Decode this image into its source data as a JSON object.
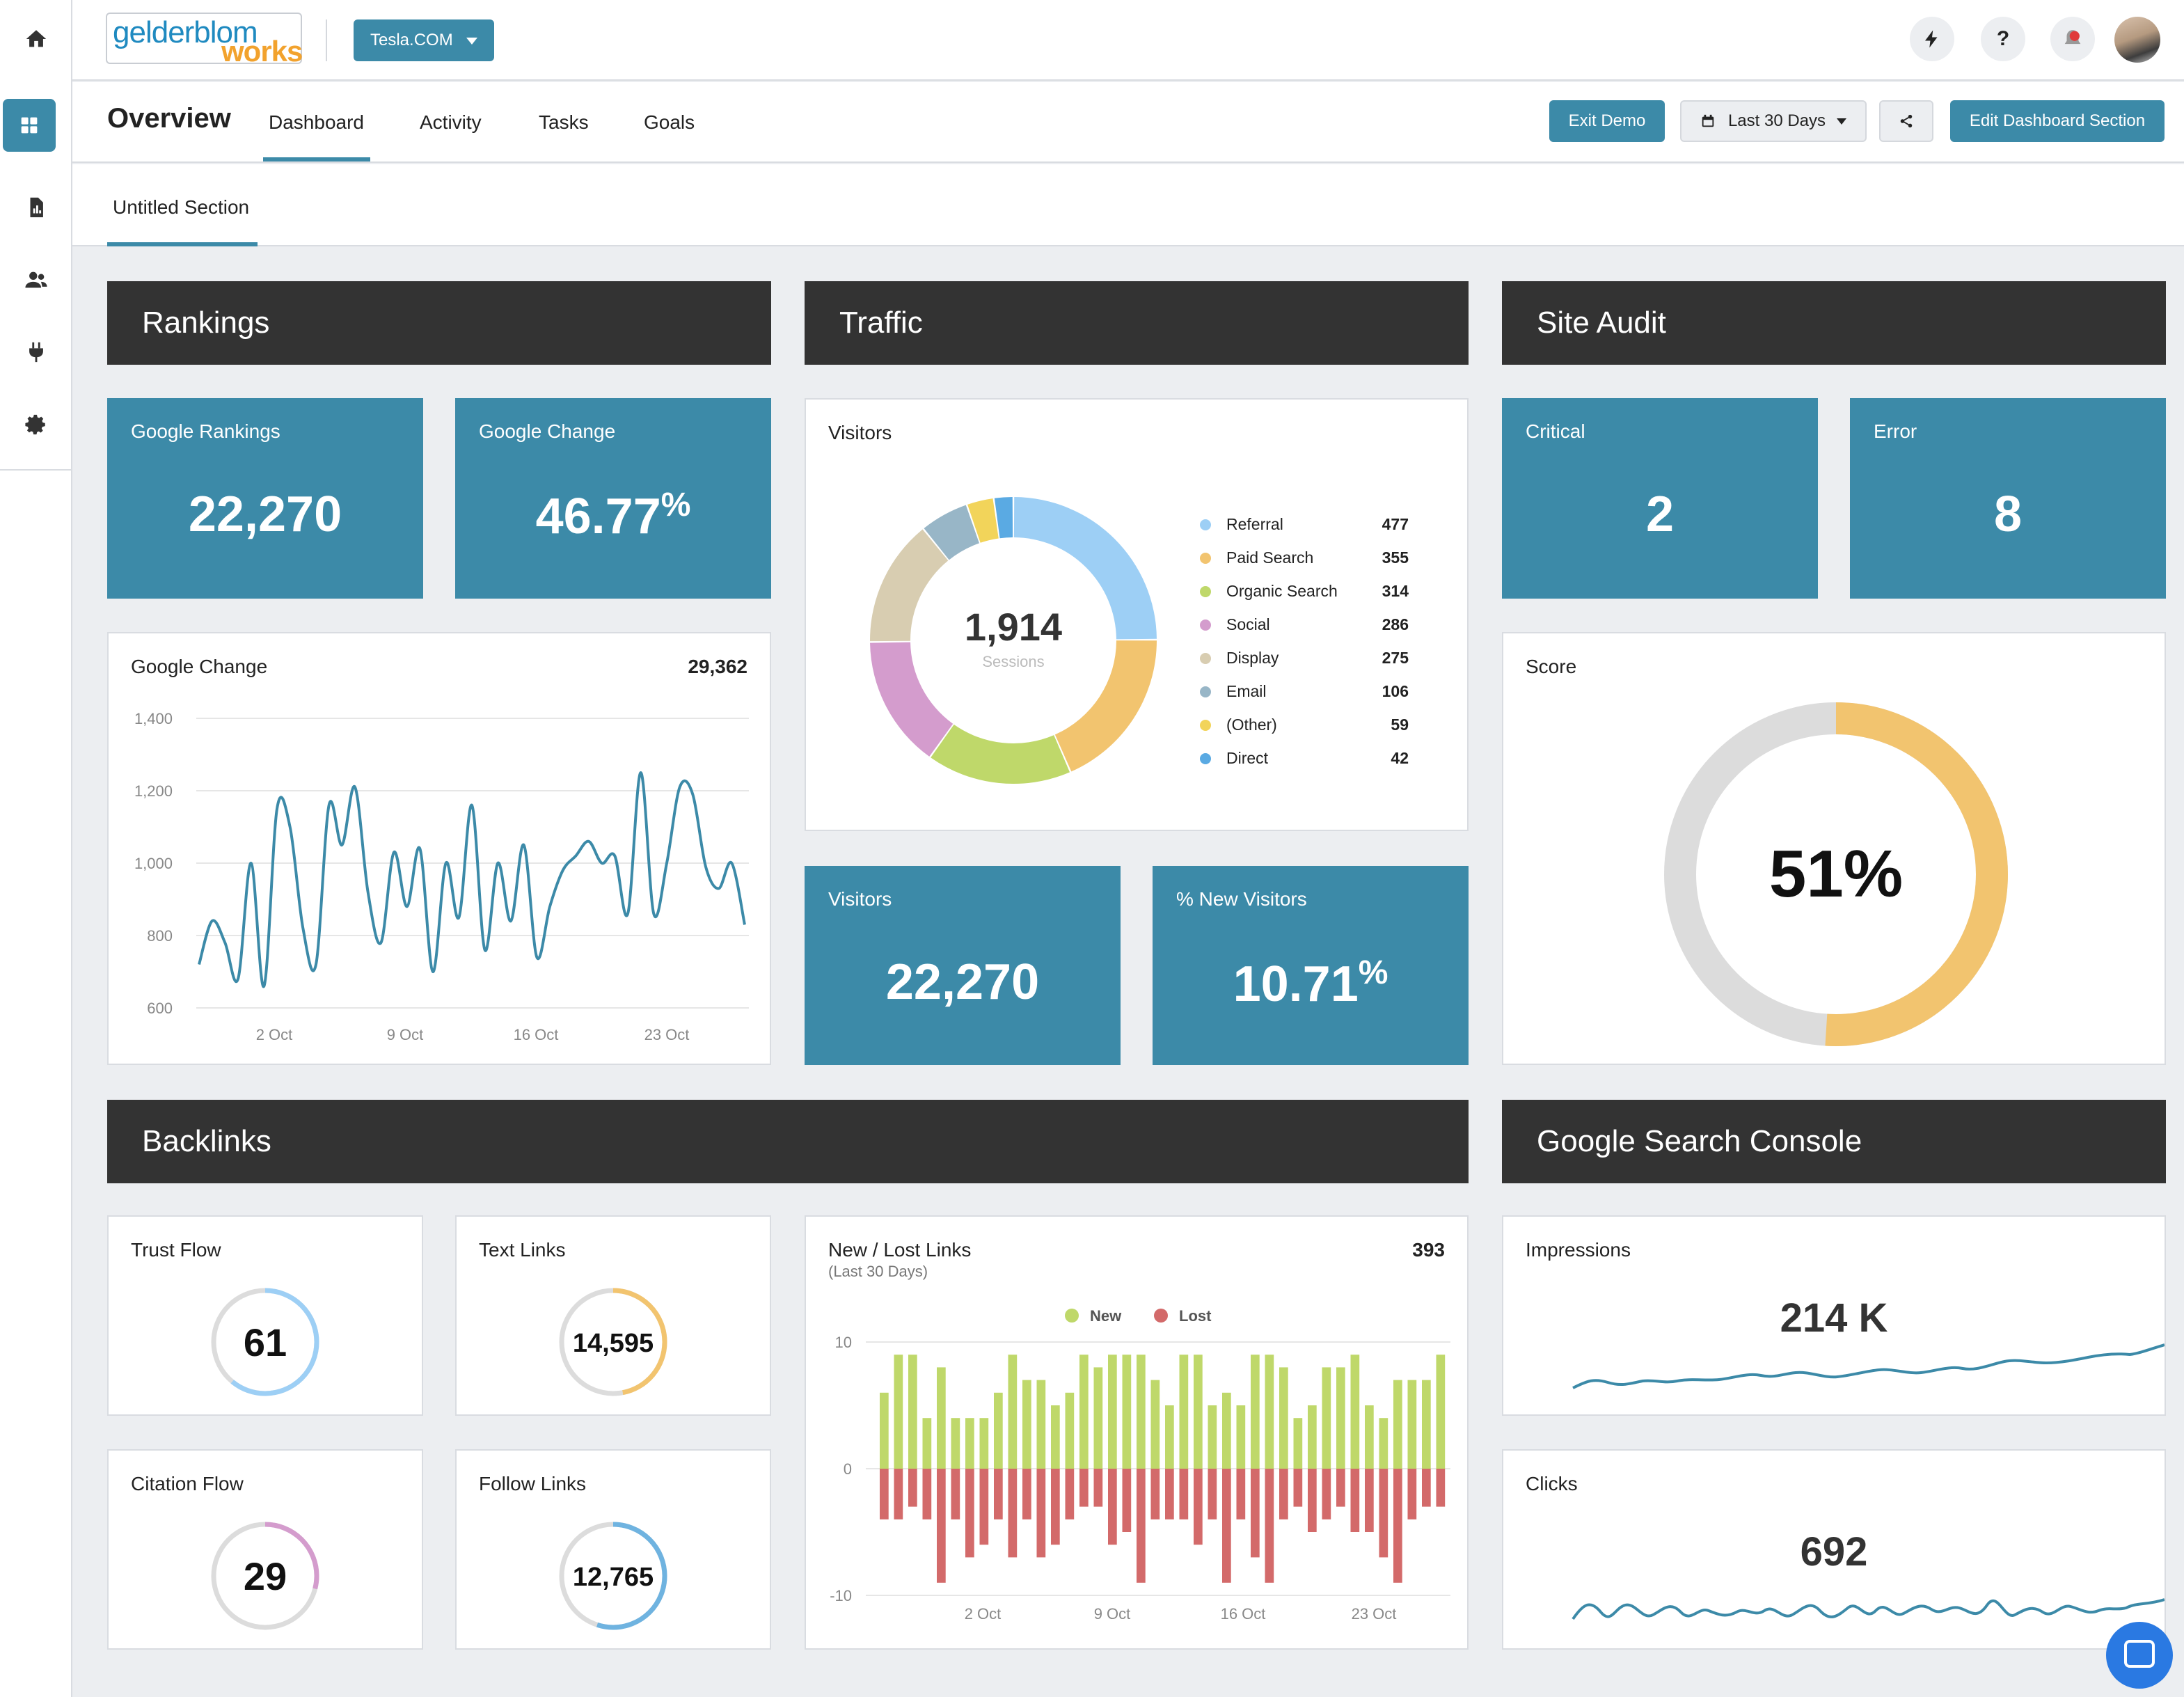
{
  "app": {
    "logo_text_1": "gelderblom",
    "logo_text_2": "works",
    "account": "Tesla.COM",
    "icons": [
      "home-icon",
      "dashboard-icon",
      "report-icon",
      "users-icon",
      "plug-icon",
      "gear-icon",
      "bolt-icon",
      "help-icon",
      "bell-icon",
      "avatar"
    ]
  },
  "subheader": {
    "title": "Overview",
    "tabs": [
      "Dashboard",
      "Activity",
      "Tasks",
      "Goals"
    ],
    "active_tab": "Dashboard",
    "exit_demo": "Exit Demo",
    "date_range": "Last 30 Days",
    "edit_section": "Edit Dashboard Section"
  },
  "section": {
    "tab": "Untitled Section"
  },
  "colors": {
    "primary": "#3c8aa8",
    "header_bg": "#333333",
    "page_bg": "#eceef1"
  },
  "rankings": {
    "header": "Rankings",
    "google_rankings": {
      "title": "Google Rankings",
      "value": "22,270"
    },
    "google_change_tile": {
      "title": "Google Change",
      "value": "46.77",
      "unit": "%"
    },
    "google_change_chart": {
      "title": "Google Change",
      "total": "29,362",
      "y_ticks": [
        "1,400",
        "1,200",
        "1,000",
        "800",
        "600"
      ],
      "x_ticks": [
        "2 Oct",
        "9 Oct",
        "16 Oct",
        "23 Oct"
      ]
    }
  },
  "traffic": {
    "header": "Traffic",
    "visitors_chart": {
      "title": "Visitors",
      "center_value": "1,914",
      "center_label": "Sessions",
      "segments": [
        {
          "name": "Referral",
          "value": "477",
          "color": "#9dcff5"
        },
        {
          "name": "Paid Search",
          "value": "355",
          "color": "#f2c46f"
        },
        {
          "name": "Organic Search",
          "value": "314",
          "color": "#bfd86a"
        },
        {
          "name": "Social",
          "value": "286",
          "color": "#d49ccd"
        },
        {
          "name": "Display",
          "value": "275",
          "color": "#d8cdb1"
        },
        {
          "name": "Email",
          "value": "106",
          "color": "#98b6c7"
        },
        {
          "name": "(Other)",
          "value": "59",
          "color": "#f2d45a"
        },
        {
          "name": "Direct",
          "value": "42",
          "color": "#5aaae3"
        }
      ]
    },
    "visitors_tile": {
      "title": "Visitors",
      "value": "22,270"
    },
    "new_visitors_tile": {
      "title": "% New Visitors",
      "value": "10.71",
      "unit": "%"
    }
  },
  "site_audit": {
    "header": "Site Audit",
    "critical": {
      "title": "Critical",
      "value": "2"
    },
    "error": {
      "title": "Error",
      "value": "8"
    },
    "score": {
      "title": "Score",
      "value": "51%",
      "fraction": 0.51,
      "fill_color": "#f2c46f",
      "track_color": "#dcdcdc"
    }
  },
  "backlinks": {
    "header": "Backlinks",
    "trust_flow": {
      "title": "Trust Flow",
      "value": "61",
      "color": "#9dcff5"
    },
    "text_links": {
      "title": "Text Links",
      "value": "14,595",
      "color": "#f2c46f"
    },
    "citation_flow": {
      "title": "Citation Flow",
      "value": "29",
      "color": "#d49ccd"
    },
    "follow_links": {
      "title": "Follow Links",
      "value": "12,765",
      "color": "#6fb3e0"
    },
    "new_lost": {
      "title": "New / Lost Links",
      "subtitle": "(Last 30 Days)",
      "total": "393",
      "legend_new": "New",
      "legend_lost": "Lost",
      "y_ticks": [
        "10",
        "0",
        "-10"
      ],
      "x_ticks": [
        "2 Oct",
        "9 Oct",
        "16 Oct",
        "23 Oct"
      ]
    }
  },
  "gsc": {
    "header": "Google Search Console",
    "impressions": {
      "title": "Impressions",
      "value": "214 K"
    },
    "clicks": {
      "title": "Clicks",
      "value": "692"
    }
  },
  "chart_data": [
    {
      "type": "line",
      "title": "Google Change",
      "ylim": [
        600,
        1400
      ],
      "x_labels": [
        "2 Oct",
        "9 Oct",
        "16 Oct",
        "23 Oct"
      ],
      "values": [
        720,
        840,
        780,
        680,
        1000,
        660,
        1150,
        1100,
        820,
        720,
        1160,
        1050,
        1210,
        920,
        780,
        1030,
        880,
        1040,
        700,
        1000,
        850,
        1160,
        760,
        1000,
        840,
        1050,
        740,
        880,
        980,
        1020,
        1060,
        1000,
        1020,
        860,
        1250,
        860,
        1000,
        1210,
        1190,
        990,
        930,
        1000,
        830
      ]
    },
    {
      "type": "bar",
      "title": "New / Lost Links",
      "ylim": [
        -10,
        10
      ],
      "series": [
        {
          "name": "New",
          "color": "#bfd86a",
          "values": [
            6,
            9,
            9,
            4,
            8,
            4,
            4,
            4,
            6,
            9,
            7,
            7,
            5,
            6,
            9,
            8,
            9,
            9,
            9,
            7,
            5,
            9,
            9,
            5,
            6,
            5,
            9,
            9,
            8,
            4,
            5,
            8,
            8,
            9,
            5,
            4,
            7,
            7,
            7,
            9
          ]
        },
        {
          "name": "Lost",
          "color": "#d36a6a",
          "values": [
            -4,
            -4,
            -3,
            -4,
            -9,
            -4,
            -7,
            -6,
            -4,
            -7,
            -4,
            -7,
            -6,
            -4,
            -3,
            -3,
            -6,
            -5,
            -9,
            -4,
            -4,
            -4,
            -6,
            -4,
            -9,
            -4,
            -7,
            -9,
            -4,
            -3,
            -5,
            -4,
            -3,
            -5,
            -5,
            -7,
            -9,
            -4,
            -3,
            -3
          ]
        }
      ]
    }
  ]
}
